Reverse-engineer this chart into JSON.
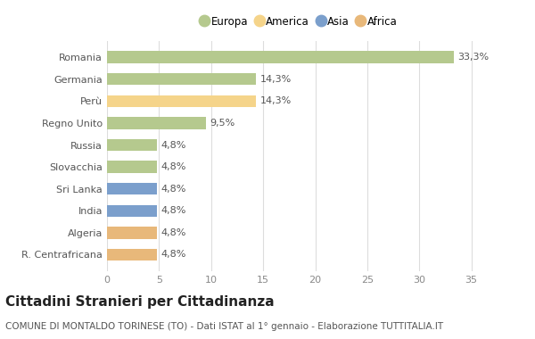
{
  "countries": [
    "Romania",
    "Germania",
    "Perù",
    "Regno Unito",
    "Russia",
    "Slovacchia",
    "Sri Lanka",
    "India",
    "Algeria",
    "R. Centrafricana"
  ],
  "values": [
    33.3,
    14.3,
    14.3,
    9.5,
    4.8,
    4.8,
    4.8,
    4.8,
    4.8,
    4.8
  ],
  "labels": [
    "33,3%",
    "14,3%",
    "14,3%",
    "9,5%",
    "4,8%",
    "4,8%",
    "4,8%",
    "4,8%",
    "4,8%",
    "4,8%"
  ],
  "continents": [
    "Europa",
    "Europa",
    "America",
    "Europa",
    "Europa",
    "Europa",
    "Asia",
    "Asia",
    "Africa",
    "Africa"
  ],
  "colors": {
    "Europa": "#b5c98e",
    "America": "#f5d48a",
    "Asia": "#7b9fcc",
    "Africa": "#e8b87a"
  },
  "legend_order": [
    "Europa",
    "America",
    "Asia",
    "Africa"
  ],
  "xlim": [
    0,
    37
  ],
  "xticks": [
    0,
    5,
    10,
    15,
    20,
    25,
    30,
    35
  ],
  "title": "Cittadini Stranieri per Cittadinanza",
  "subtitle": "COMUNE DI MONTALDO TORINESE (TO) - Dati ISTAT al 1° gennaio - Elaborazione TUTTITALIA.IT",
  "bg_color": "#ffffff",
  "grid_color": "#dddddd",
  "bar_height": 0.55,
  "label_fontsize": 8,
  "title_fontsize": 11,
  "subtitle_fontsize": 7.5,
  "tick_fontsize": 8,
  "legend_fontsize": 8.5
}
